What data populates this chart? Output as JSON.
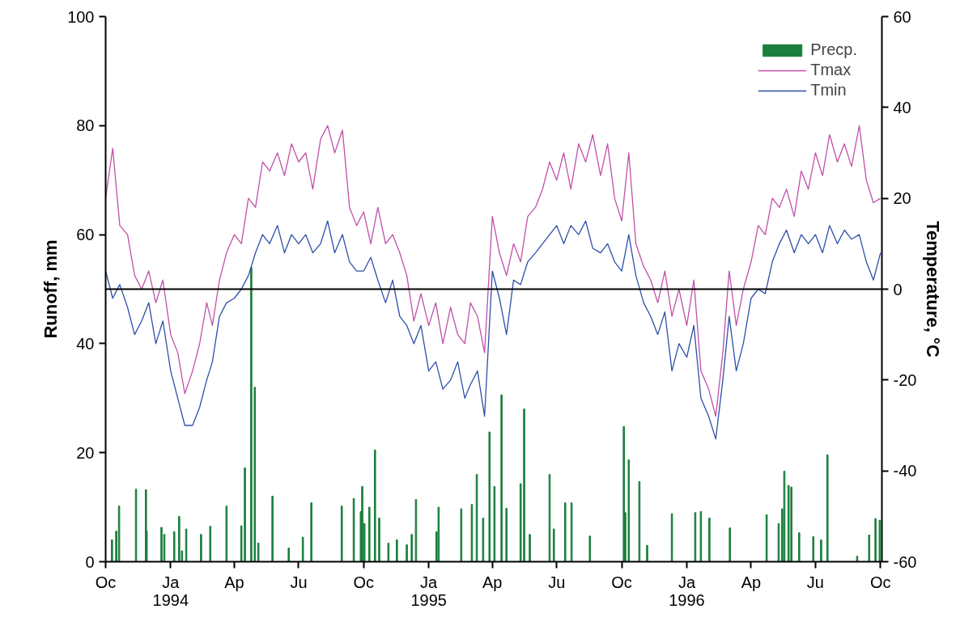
{
  "chart_data": {
    "type": "line",
    "ylabel": "Runoff, mm",
    "y2label": "Temperature, °C",
    "xlim": [
      "1993-10-01",
      "1996-10-03"
    ],
    "xticks": [
      {
        "value": "1993-10-01",
        "label": "Oc"
      },
      {
        "value": "1994-01-01",
        "label": "Ja\n1994"
      },
      {
        "value": "1994-04-01",
        "label": "Ap"
      },
      {
        "value": "1994-07-01",
        "label": "Ju"
      },
      {
        "value": "1994-10-01",
        "label": "Oc"
      },
      {
        "value": "1995-01-01",
        "label": "Ja\n1995"
      },
      {
        "value": "1995-04-01",
        "label": "Ap"
      },
      {
        "value": "1995-07-01",
        "label": "Ju"
      },
      {
        "value": "1995-10-01",
        "label": "Oc"
      },
      {
        "value": "1996-01-01",
        "label": "Ja\n1996"
      },
      {
        "value": "1996-04-01",
        "label": "Ap"
      },
      {
        "value": "1996-07-01",
        "label": "Ju"
      },
      {
        "value": "1996-10-01",
        "label": "Oc"
      }
    ],
    "ylim": [
      0,
      100
    ],
    "yticks": [
      0,
      20,
      40,
      60,
      80,
      100
    ],
    "y2lim": [
      -60,
      60
    ],
    "y2ticks": [
      -60,
      -40,
      -20,
      0,
      20,
      40,
      60
    ],
    "ref_lines": [
      {
        "axis": "y2",
        "value": 0,
        "color": "#000000"
      }
    ],
    "grid": false,
    "legend": "top right",
    "series": [
      {
        "name": "Precp.",
        "type": "bar",
        "axis": "y",
        "color": "#1a7f3c",
        "x": [
          "1993-10-10",
          "1993-10-16",
          "1993-10-20",
          "1993-11-13",
          "1993-11-27",
          "1993-11-28",
          "1993-12-19",
          "1993-12-23",
          "1994-01-06",
          "1994-01-13",
          "1994-01-17",
          "1994-01-23",
          "1994-02-13",
          "1994-02-26",
          "1994-03-21",
          "1994-04-11",
          "1994-04-16",
          "1994-04-25",
          "1994-04-30",
          "1994-05-05",
          "1994-05-25",
          "1994-06-17",
          "1994-07-07",
          "1994-07-19",
          "1994-08-31",
          "1994-09-17",
          "1994-09-27",
          "1994-09-29",
          "1994-10-02",
          "1994-10-09",
          "1994-10-17",
          "1994-10-23",
          "1994-11-05",
          "1994-11-17",
          "1994-12-01",
          "1994-12-08",
          "1994-12-14",
          "1995-01-12",
          "1995-01-15",
          "1995-02-16",
          "1995-03-03",
          "1995-03-10",
          "1995-03-19",
          "1995-03-28",
          "1995-04-04",
          "1995-04-14",
          "1995-04-21",
          "1995-05-11",
          "1995-05-16",
          "1995-05-24",
          "1995-06-21",
          "1995-06-27",
          "1995-07-13",
          "1995-07-22",
          "1995-08-17",
          "1995-10-04",
          "1995-10-06",
          "1995-10-11",
          "1995-10-26",
          "1995-11-06",
          "1995-12-11",
          "1996-01-13",
          "1996-01-21",
          "1996-02-02",
          "1996-03-02",
          "1996-04-23",
          "1996-05-10",
          "1996-05-15",
          "1996-05-18",
          "1996-05-24",
          "1996-05-28",
          "1996-06-08",
          "1996-06-28",
          "1996-07-09",
          "1996-07-18",
          "1996-08-29",
          "1996-09-15",
          "1996-09-24",
          "1996-09-30"
        ],
        "values": [
          4.0,
          5.6,
          10.2,
          13.3,
          13.2,
          5.6,
          6.3,
          5.0,
          5.5,
          8.3,
          2.0,
          6.0,
          5.0,
          6.5,
          10.2,
          6.6,
          17.2,
          54.0,
          32.0,
          3.4,
          12.0,
          2.5,
          4.5,
          10.8,
          10.2,
          11.6,
          9.2,
          13.8,
          7.0,
          10.0,
          20.5,
          8.0,
          3.4,
          4.0,
          3.1,
          5.0,
          11.4,
          5.5,
          10.0,
          9.7,
          10.5,
          16.0,
          8.0,
          23.8,
          13.8,
          30.6,
          9.8,
          14.3,
          28.0,
          5.0,
          16.0,
          6.0,
          10.8,
          10.8,
          4.7,
          24.8,
          9.0,
          18.7,
          14.7,
          3.0,
          8.8,
          9.0,
          9.2,
          8.0,
          6.2,
          8.6,
          7.0,
          9.7,
          16.6,
          14.0,
          13.7,
          5.3,
          4.6,
          4.0,
          19.6,
          1.0,
          4.9,
          7.9,
          7.6
        ]
      },
      {
        "name": "Tmax",
        "axis": "y2",
        "color": "#c050a8",
        "values": [
          20,
          31,
          14,
          12,
          3,
          0,
          4,
          -3,
          2,
          -10,
          -14,
          -23,
          -18,
          -12,
          -3,
          -8,
          2,
          8,
          12,
          10,
          20,
          18,
          28,
          26,
          30,
          25,
          32,
          28,
          30,
          22,
          33,
          36,
          30,
          35,
          18,
          14,
          17,
          10,
          18,
          10,
          12,
          8,
          3,
          -7,
          -1,
          -8,
          -3,
          -12,
          -4,
          -10,
          -12,
          -3,
          -6,
          -14,
          16,
          8,
          3,
          10,
          6,
          16,
          18,
          22,
          28,
          24,
          30,
          22,
          32,
          28,
          34,
          25,
          32,
          20,
          15,
          30,
          10,
          5,
          2,
          -3,
          4,
          -6,
          0,
          -8,
          2,
          -18,
          -22,
          -28,
          -14,
          4,
          -8,
          0,
          6,
          14,
          12,
          20,
          18,
          22,
          16,
          26,
          22,
          30,
          25,
          34,
          28,
          32,
          27,
          36,
          24,
          19,
          20
        ]
      },
      {
        "name": "Tmin",
        "axis": "y2",
        "color": "#2e4fa8",
        "values": [
          4,
          -2,
          1,
          -4,
          -10,
          -7,
          -3,
          -12,
          -7,
          -18,
          -24,
          -30,
          -30,
          -26,
          -20,
          -16,
          -6,
          -3,
          -2,
          0,
          3,
          8,
          12,
          10,
          14,
          8,
          12,
          10,
          12,
          8,
          10,
          15,
          8,
          12,
          6,
          4,
          4,
          7,
          2,
          -3,
          2,
          -6,
          -8,
          -12,
          -8,
          -18,
          -16,
          -22,
          -20,
          -16,
          -24,
          -21,
          -18,
          -28,
          4,
          -2,
          -10,
          2,
          1,
          6,
          8,
          10,
          12,
          14,
          10,
          14,
          12,
          15,
          9,
          8,
          10,
          6,
          4,
          12,
          3,
          -3,
          -6,
          -10,
          -5,
          -18,
          -12,
          -15,
          -8,
          -24,
          -28,
          -33,
          -20,
          -6,
          -18,
          -12,
          -2,
          0,
          -1,
          6,
          10,
          13,
          8,
          12,
          10,
          12,
          8,
          14,
          10,
          13,
          11,
          12,
          6,
          2,
          8
        ]
      }
    ],
    "x": [
      "1993-10-01",
      "1993-10-11",
      "1993-10-21",
      "1993-11-01",
      "1993-11-11",
      "1993-11-21",
      "1993-12-01",
      "1993-12-11",
      "1993-12-21",
      "1994-01-01",
      "1994-01-11",
      "1994-01-21",
      "1994-02-01",
      "1994-02-11",
      "1994-02-21",
      "1994-03-01",
      "1994-03-11",
      "1994-03-21",
      "1994-04-01",
      "1994-04-11",
      "1994-04-21",
      "1994-05-01",
      "1994-05-11",
      "1994-05-21",
      "1994-06-01",
      "1994-06-11",
      "1994-06-21",
      "1994-07-01",
      "1994-07-11",
      "1994-07-21",
      "1994-08-01",
      "1994-08-11",
      "1994-08-21",
      "1994-09-01",
      "1994-09-11",
      "1994-09-21",
      "1994-10-01",
      "1994-10-11",
      "1994-10-21",
      "1994-11-01",
      "1994-11-11",
      "1994-11-21",
      "1994-12-01",
      "1994-12-11",
      "1994-12-21",
      "1995-01-01",
      "1995-01-11",
      "1995-01-21",
      "1995-02-01",
      "1995-02-11",
      "1995-02-21",
      "1995-03-01",
      "1995-03-11",
      "1995-03-21",
      "1995-04-01",
      "1995-04-11",
      "1995-04-21",
      "1995-05-01",
      "1995-05-11",
      "1995-05-21",
      "1995-06-01",
      "1995-06-11",
      "1995-06-21",
      "1995-07-01",
      "1995-07-11",
      "1995-07-21",
      "1995-08-01",
      "1995-08-11",
      "1995-08-21",
      "1995-09-01",
      "1995-09-11",
      "1995-09-21",
      "1995-10-01",
      "1995-10-11",
      "1995-10-21",
      "1995-11-01",
      "1995-11-11",
      "1995-11-21",
      "1995-12-01",
      "1995-12-11",
      "1995-12-21",
      "1996-01-01",
      "1996-01-11",
      "1996-01-21",
      "1996-02-01",
      "1996-02-11",
      "1996-02-21",
      "1996-03-01",
      "1996-03-11",
      "1996-03-21",
      "1996-04-01",
      "1996-04-11",
      "1996-04-21",
      "1996-05-01",
      "1996-05-11",
      "1996-05-21",
      "1996-06-01",
      "1996-06-11",
      "1996-06-21",
      "1996-07-01",
      "1996-07-11",
      "1996-07-21",
      "1996-08-01",
      "1996-08-11",
      "1996-08-21",
      "1996-09-01",
      "1996-09-11",
      "1996-09-21",
      "1996-10-01"
    ]
  }
}
